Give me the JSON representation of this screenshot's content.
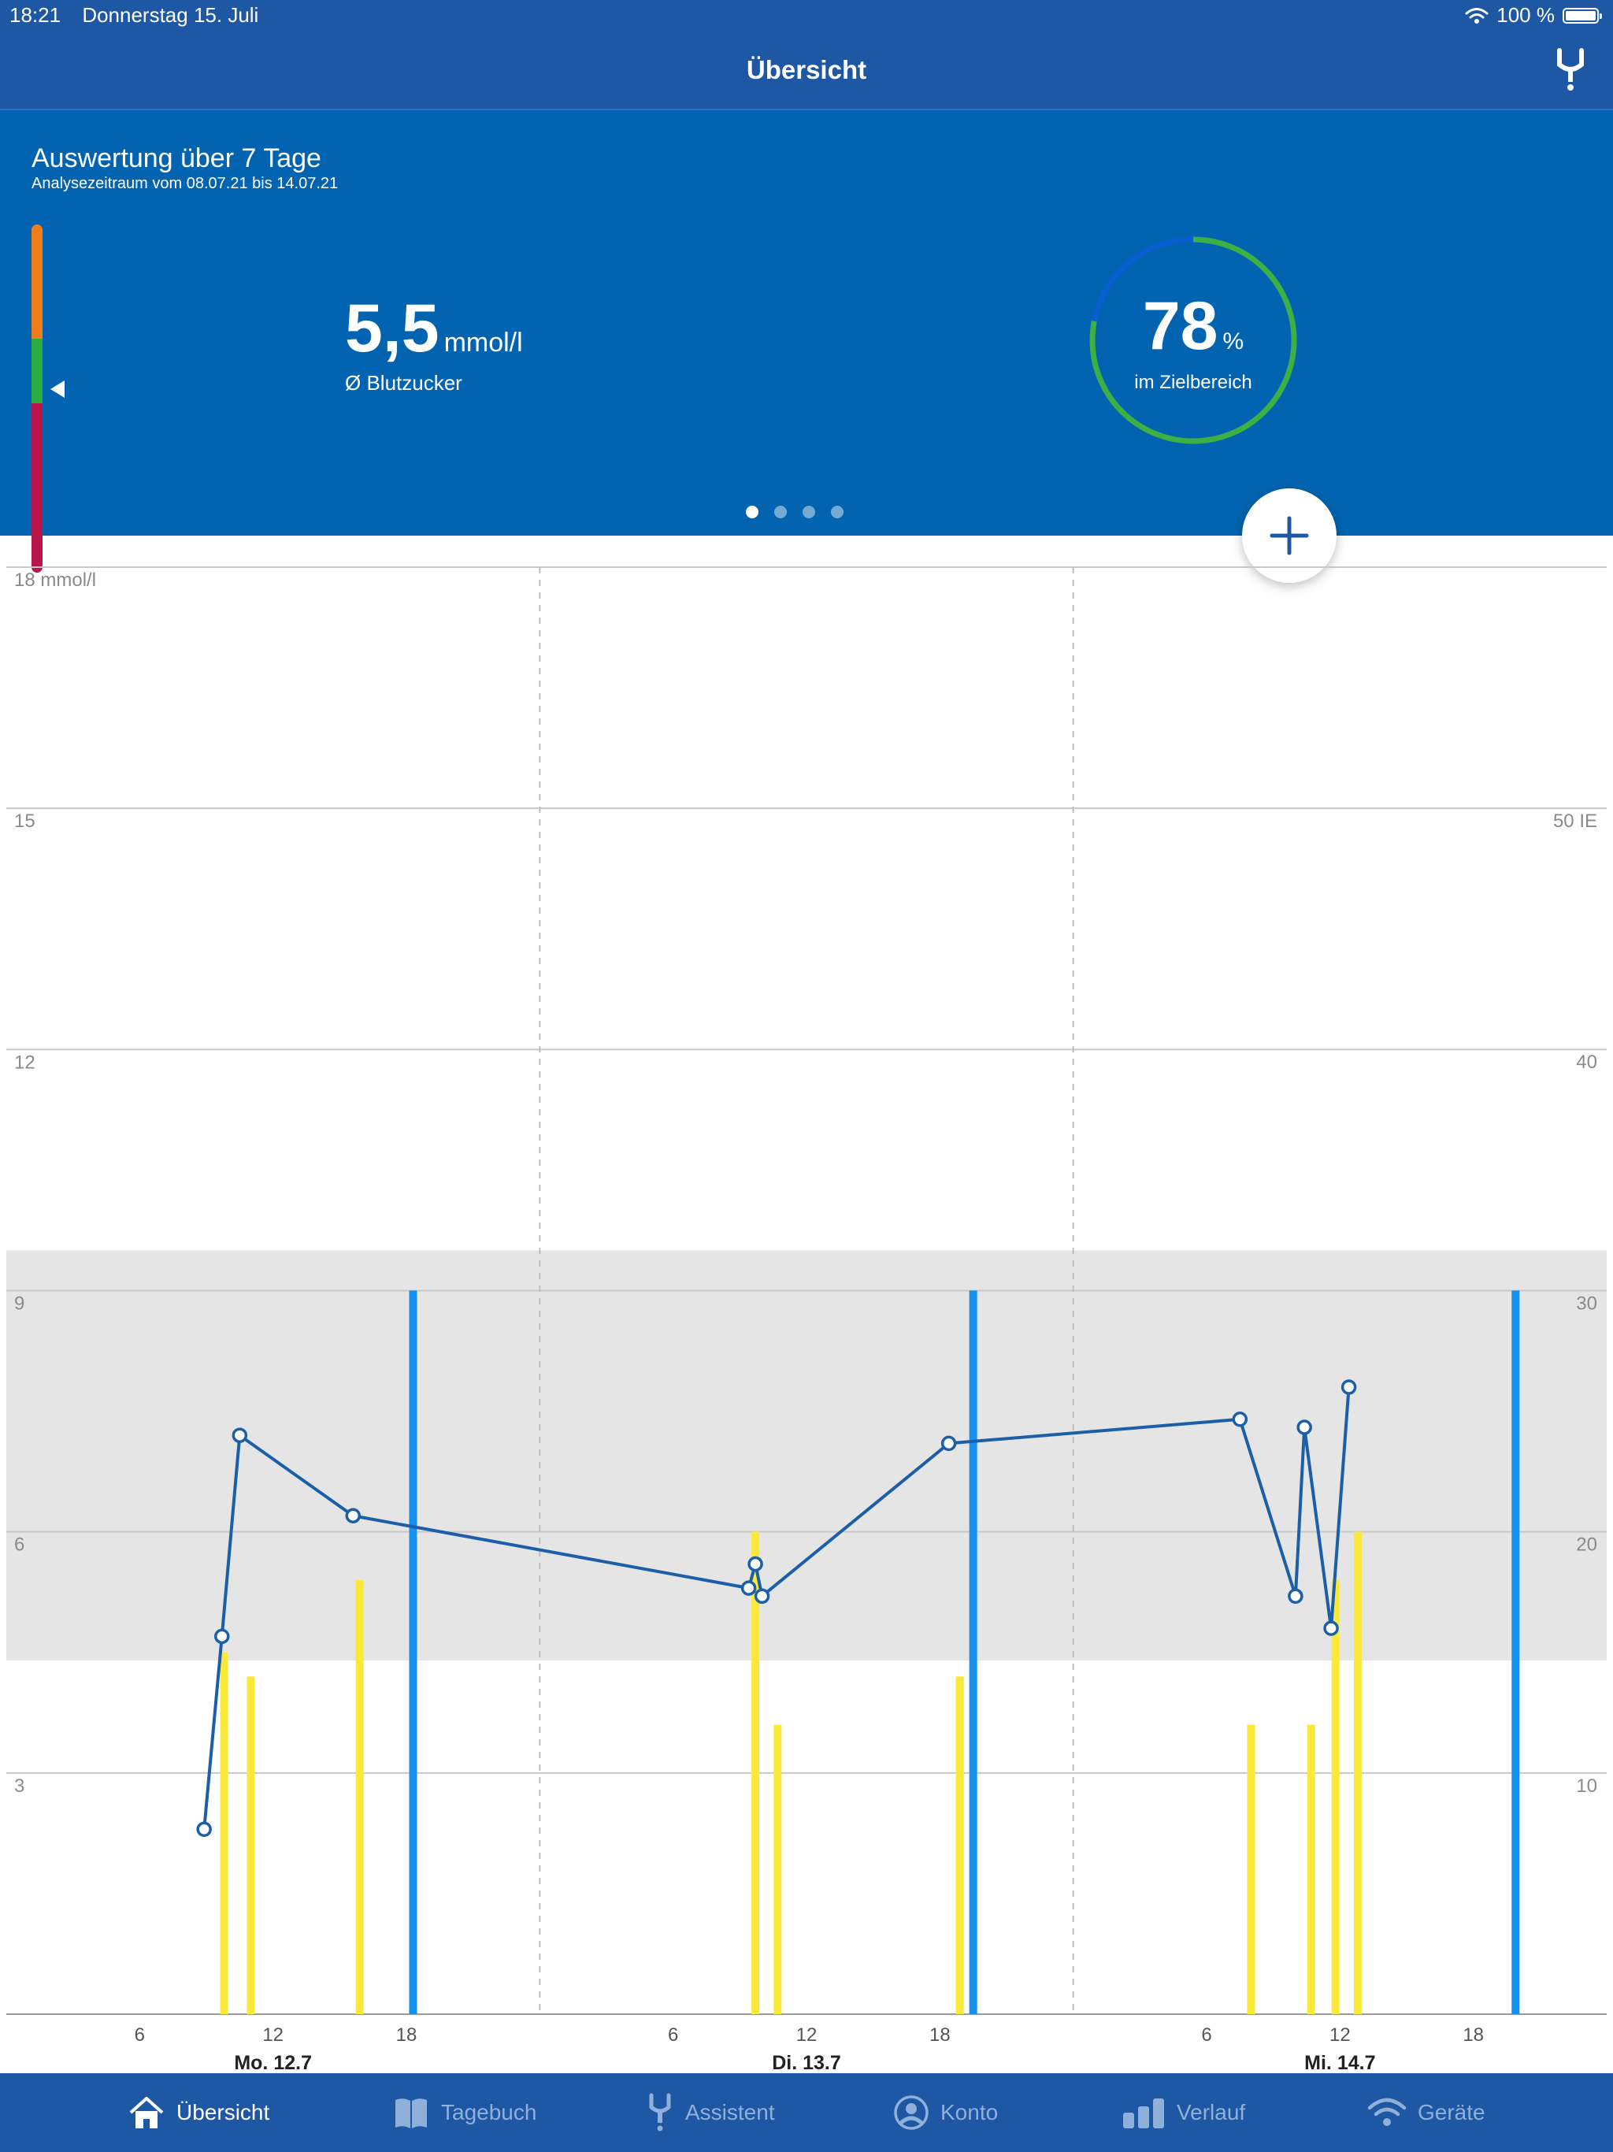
{
  "status_bar": {
    "time": "18:21",
    "date": "Donnerstag 15. Juli",
    "battery": "100 %"
  },
  "nav": {
    "title": "Übersicht",
    "icon": "glucose-meter-icon"
  },
  "summary": {
    "title": "Auswertung über 7 Tage",
    "subtitle": "Analysezeitraum vom 08.07.21 bis 14.07.21",
    "avg_value": "5,5",
    "avg_unit": "mmol/l",
    "avg_label": "Ø Blutzucker",
    "target_value": "78",
    "target_unit": "%",
    "target_label": "im Zielbereich",
    "target_fraction": 0.78,
    "pages": 4,
    "active_page": 0,
    "colors": {
      "high": "#f07c1c",
      "in_range": "#2fab44",
      "low": "#b8164a",
      "ring_in": "#3cb043",
      "ring_out": "#0a5fd0"
    }
  },
  "fab": {
    "icon": "plus-icon"
  },
  "chart_data": {
    "type": "line",
    "y_left_label": "18 mmol/l",
    "y_left_ticks": [
      "15",
      "12",
      "9",
      "6",
      "3"
    ],
    "y_right_ticks": [
      "50 IE",
      "40",
      "30",
      "20",
      "10"
    ],
    "ylim": [
      0,
      18
    ],
    "target_range": [
      4.4,
      9.5
    ],
    "days": [
      "Mo. 12.7",
      "Di. 13.7",
      "Mi. 14.7"
    ],
    "x_ticks": [
      "6",
      "12",
      "18",
      "6",
      "12",
      "18",
      "6",
      "12",
      "18"
    ],
    "glucose_series": {
      "color": "#1a5fa8",
      "points": [
        {
          "day": 0,
          "hour": 8.9,
          "value": 2.3
        },
        {
          "day": 0,
          "hour": 9.7,
          "value": 4.7
        },
        {
          "day": 0,
          "hour": 10.5,
          "value": 7.2
        },
        {
          "day": 0,
          "hour": 15.6,
          "value": 6.2
        },
        {
          "day": 1,
          "hour": 9.4,
          "value": 5.3
        },
        {
          "day": 1,
          "hour": 9.7,
          "value": 5.6
        },
        {
          "day": 1,
          "hour": 10.0,
          "value": 5.2
        },
        {
          "day": 1,
          "hour": 18.4,
          "value": 7.1
        },
        {
          "day": 2,
          "hour": 7.5,
          "value": 7.4
        },
        {
          "day": 2,
          "hour": 10.0,
          "value": 5.2
        },
        {
          "day": 2,
          "hour": 10.4,
          "value": 7.3
        },
        {
          "day": 2,
          "hour": 11.6,
          "value": 4.8
        },
        {
          "day": 2,
          "hour": 12.4,
          "value": 7.8
        }
      ]
    },
    "bolus_insulin": {
      "color": "#fbe93a",
      "bars": [
        {
          "day": 0,
          "hour": 9.8,
          "value": 15
        },
        {
          "day": 0,
          "hour": 11.0,
          "value": 14
        },
        {
          "day": 0,
          "hour": 15.9,
          "value": 18
        },
        {
          "day": 1,
          "hour": 9.7,
          "value": 20
        },
        {
          "day": 1,
          "hour": 10.7,
          "value": 12
        },
        {
          "day": 1,
          "hour": 18.9,
          "value": 14
        },
        {
          "day": 2,
          "hour": 8.0,
          "value": 12
        },
        {
          "day": 2,
          "hour": 10.7,
          "value": 12
        },
        {
          "day": 2,
          "hour": 11.8,
          "value": 18
        },
        {
          "day": 2,
          "hour": 12.8,
          "value": 20
        }
      ]
    },
    "basal_insulin": {
      "color": "#1590ee",
      "bars": [
        {
          "day": 0,
          "hour": 18.3,
          "value": 30
        },
        {
          "day": 1,
          "hour": 19.5,
          "value": 30
        },
        {
          "day": 2,
          "hour": 19.9,
          "value": 30
        }
      ]
    }
  },
  "tabs": [
    {
      "label": "Übersicht",
      "icon": "home-icon",
      "active": true
    },
    {
      "label": "Tagebuch",
      "icon": "book-icon",
      "active": false
    },
    {
      "label": "Assistent",
      "icon": "glucose-meter-icon",
      "active": false
    },
    {
      "label": "Konto",
      "icon": "account-icon",
      "active": false
    },
    {
      "label": "Verlauf",
      "icon": "bar-chart-icon",
      "active": false
    },
    {
      "label": "Geräte",
      "icon": "wifi-icon",
      "active": false
    }
  ]
}
